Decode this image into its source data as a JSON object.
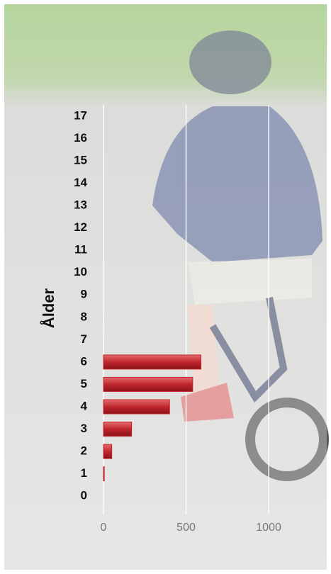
{
  "chart_data": {
    "type": "barh",
    "axis_title": "Ålder",
    "categories": [
      "0",
      "1",
      "2",
      "3",
      "4",
      "5",
      "6",
      "7",
      "8",
      "9",
      "10",
      "11",
      "12",
      "13",
      "14",
      "15",
      "16",
      "17"
    ],
    "values": [
      0,
      5,
      50,
      170,
      400,
      540,
      590,
      0,
      0,
      0,
      0,
      0,
      0,
      0,
      0,
      0,
      0,
      0
    ],
    "color": "#c0262c",
    "xlim": [
      0,
      1300
    ],
    "xticks": [
      0,
      500,
      1000
    ],
    "grid": true
  }
}
